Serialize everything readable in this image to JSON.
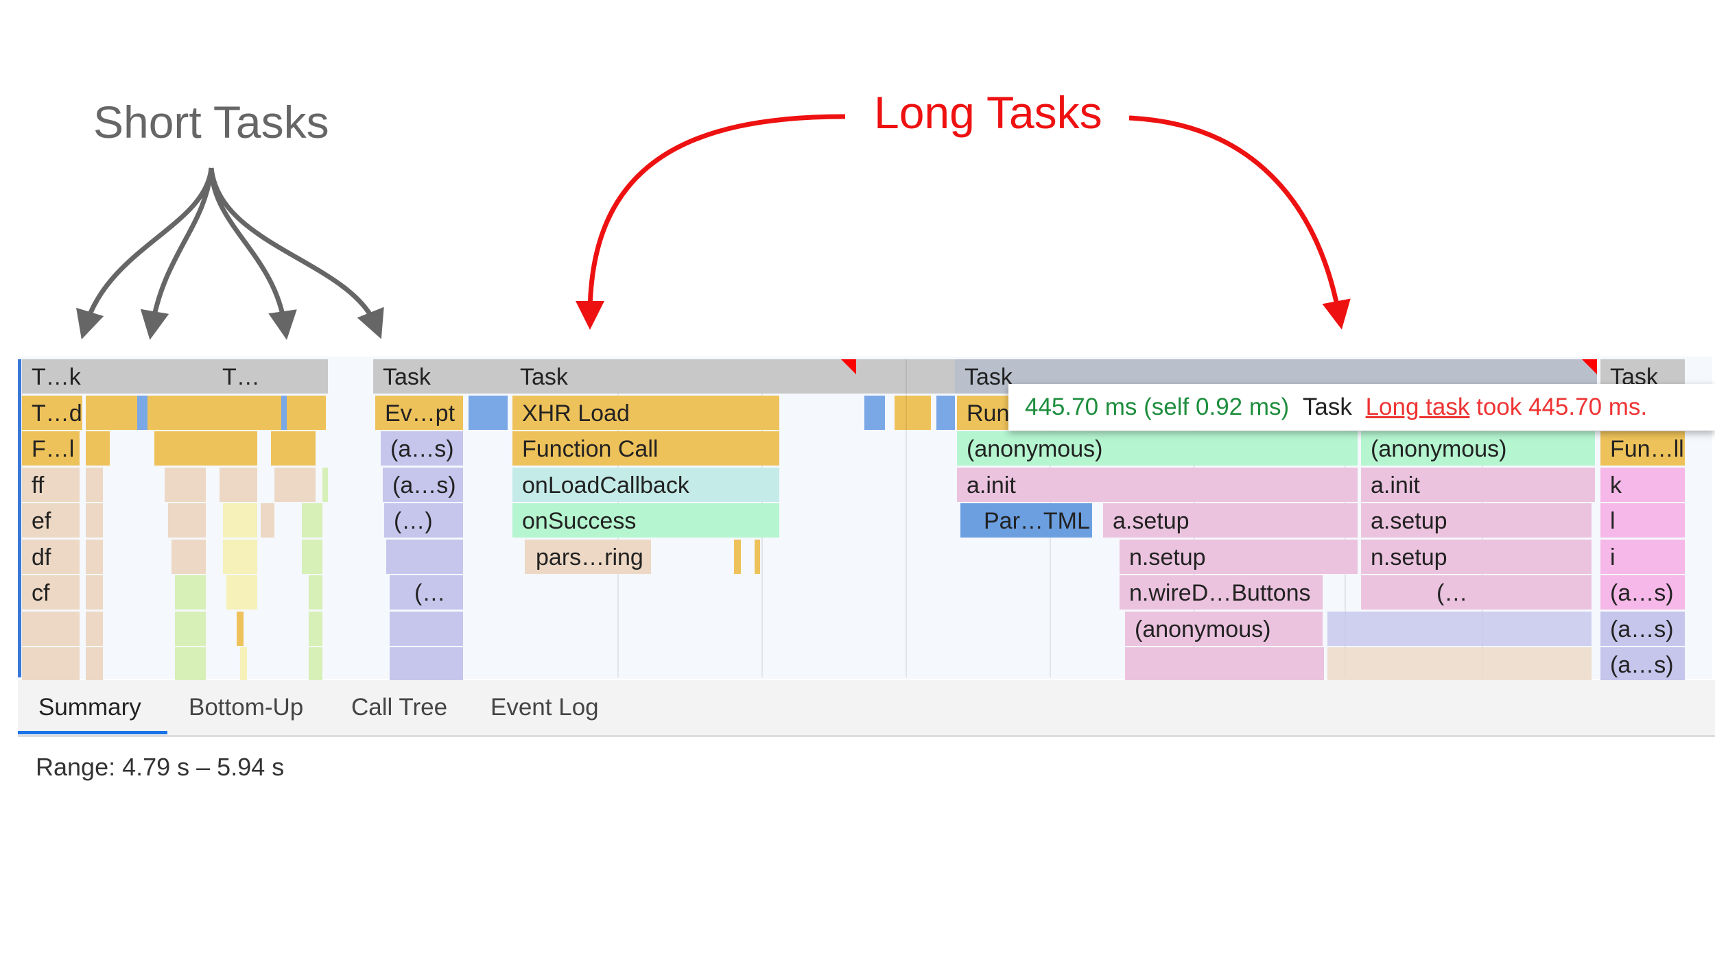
{
  "annotations": {
    "short_tasks": "Short Tasks",
    "long_tasks": "Long Tasks",
    "short_color": "#666666",
    "long_color": "#ee1111"
  },
  "flame_chart": {
    "rows": [
      [
        "T…k",
        "T…",
        "Task",
        "Task",
        "Task",
        "Task"
      ],
      [
        "T…d",
        "Ev…pt",
        "XHR Load",
        "Run"
      ],
      [
        "F…l",
        "(a…s)",
        "Function Call",
        "(anonymous)",
        "(anonymous)",
        "Fun…ll"
      ],
      [
        "ff",
        "(a…s)",
        "onLoadCallback",
        "a.init",
        "a.init",
        "k"
      ],
      [
        "ef",
        "(…)",
        "onSuccess",
        "Par…TML",
        "a.setup",
        "a.setup",
        "l"
      ],
      [
        "df",
        "pars…ring",
        "n.setup",
        "n.setup",
        "i"
      ],
      [
        "cf",
        "(…",
        "n.wireD…Buttons",
        "(…",
        "(a…s)"
      ],
      [
        "(anonymous)",
        "(a…s)"
      ],
      [
        "(a…s)"
      ]
    ]
  },
  "tooltip": {
    "duration": "445.70 ms (self 0.92 ms)",
    "name": "Task",
    "warning_link": "Long task",
    "warning_rest": " took 445.70 ms."
  },
  "tabs": [
    {
      "label": "Summary",
      "active": true
    },
    {
      "label": "Bottom-Up"
    },
    {
      "label": "Call Tree"
    },
    {
      "label": "Event Log"
    }
  ],
  "range": "Range: 4.79 s – 5.94 s"
}
